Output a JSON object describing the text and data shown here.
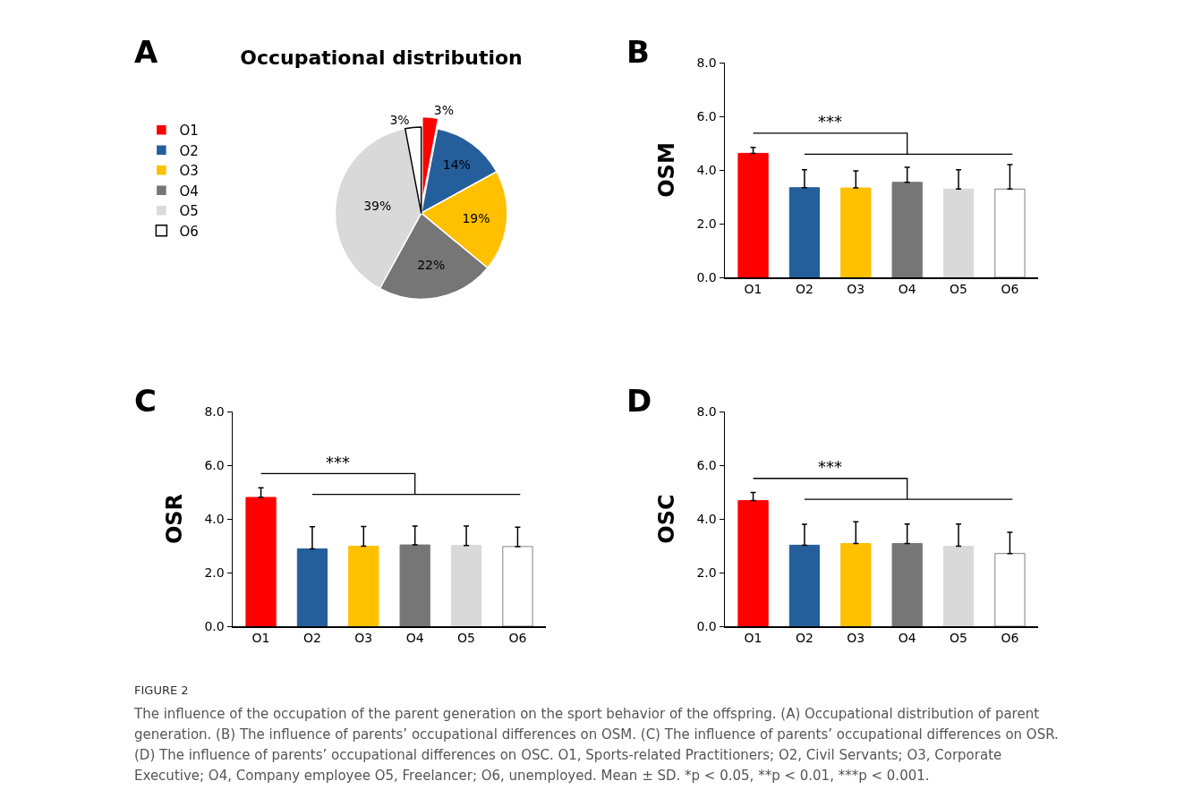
{
  "chart_data": [
    {
      "type": "pie",
      "title": "Occupational distribution",
      "annotations": [
        "A"
      ],
      "categories": [
        "O1",
        "O2",
        "O3",
        "O4",
        "O5",
        "O6"
      ],
      "values": [
        3,
        14,
        19,
        22,
        39,
        3
      ],
      "value_labels": [
        "3%",
        "14%",
        "19%",
        "22%",
        "39%",
        "3%"
      ],
      "colors": [
        "#ff0000",
        "#245f9b",
        "#ffc000",
        "#767676",
        "#d9d9d9",
        "#ffffff"
      ],
      "legend": "left"
    },
    {
      "type": "bar",
      "ylabel": "OSM",
      "annotations": [
        "B",
        "***"
      ],
      "categories": [
        "O1",
        "O2",
        "O3",
        "O4",
        "O5",
        "O6"
      ],
      "values": [
        4.62,
        3.34,
        3.33,
        3.54,
        3.29,
        3.29
      ],
      "errors": [
        [
          4.62,
          4.84
        ],
        [
          3.34,
          4.01
        ],
        [
          3.33,
          3.97
        ],
        [
          3.54,
          4.1
        ],
        [
          3.29,
          4.01
        ],
        [
          3.29,
          4.2
        ]
      ],
      "colors": [
        "#ff0000",
        "#245f9b",
        "#ffc000",
        "#767676",
        "#d9d9d9",
        "#ffffff"
      ],
      "ylim": [
        0,
        8
      ],
      "yticks": [
        {
          "value": 0,
          "label": "0.0"
        },
        {
          "value": 2,
          "label": "2.0"
        },
        {
          "value": 4,
          "label": "4.0"
        },
        {
          "value": 6,
          "label": "6.0"
        },
        {
          "value": 8,
          "label": "8.0"
        }
      ],
      "grid": false,
      "legend": false
    },
    {
      "type": "bar",
      "ylabel": "OSR",
      "annotations": [
        "C",
        "***"
      ],
      "categories": [
        "O1",
        "O2",
        "O3",
        "O4",
        "O5",
        "O6"
      ],
      "values": [
        4.8,
        2.88,
        2.98,
        3.03,
        3.01,
        2.97
      ],
      "errors": [
        [
          4.8,
          5.16
        ],
        [
          2.88,
          3.71
        ],
        [
          2.98,
          3.72
        ],
        [
          3.03,
          3.73
        ],
        [
          3.01,
          3.73
        ],
        [
          2.97,
          3.69
        ]
      ],
      "colors": [
        "#ff0000",
        "#245f9b",
        "#ffc000",
        "#767676",
        "#d9d9d9",
        "#ffffff"
      ],
      "ylim": [
        0,
        8
      ],
      "yticks": [
        {
          "value": 0,
          "label": "0.0"
        },
        {
          "value": 2,
          "label": "2.0"
        },
        {
          "value": 4,
          "label": "4.0"
        },
        {
          "value": 6,
          "label": "6.0"
        },
        {
          "value": 8,
          "label": "8.0"
        }
      ],
      "grid": false,
      "legend": false
    },
    {
      "type": "bar",
      "ylabel": "OSC",
      "annotations": [
        "D",
        "***",
        "FIGURE 2",
        "The influence of the occupation of the parent generation on the sport behavior of the offspring. (A) Occupational distribution of parent generation. (B) The influence of parents’ occupational differences on OSM. (C) The influence of parents’ occupational differences on OSR. (D) The influence of parents’ occupational differences on OSC. O1, Sports-related Practitioners; O2, Civil Servants; O3, Corporate Executive; O4, Company employee O5, Freelancer; O6, unemployed. Mean ± SD. *p < 0.05, **p < 0.01, ***p < 0.001."
      ],
      "categories": [
        "O1",
        "O2",
        "O3",
        "O4",
        "O5",
        "O6"
      ],
      "values": [
        4.68,
        3.02,
        3.08,
        3.08,
        2.98,
        2.71
      ],
      "errors": [
        [
          4.68,
          4.98
        ],
        [
          3.02,
          3.8
        ],
        [
          3.08,
          3.89
        ],
        [
          3.08,
          3.81
        ],
        [
          2.98,
          3.81
        ],
        [
          2.71,
          3.5
        ]
      ],
      "colors": [
        "#ff0000",
        "#245f9b",
        "#ffc000",
        "#767676",
        "#d9d9d9",
        "#ffffff"
      ],
      "ylim": [
        0,
        8
      ],
      "yticks": [
        {
          "value": 0,
          "label": "0.0"
        },
        {
          "value": 2,
          "label": "2.0"
        },
        {
          "value": 4,
          "label": "4.0"
        },
        {
          "value": 6,
          "label": "6.0"
        },
        {
          "value": 8,
          "label": "8.0"
        }
      ],
      "grid": false,
      "legend": false
    }
  ]
}
